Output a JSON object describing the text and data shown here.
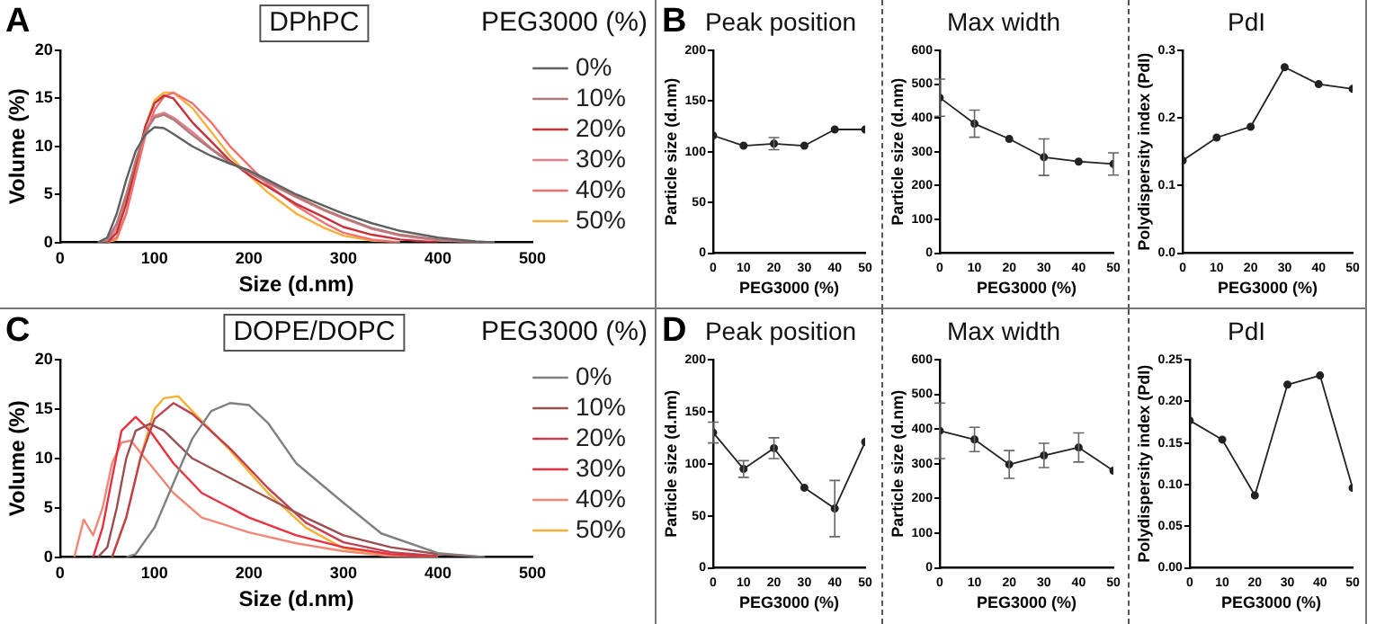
{
  "chart_data": [
    {
      "type": "line",
      "title": "DPhPC",
      "annotations": [
        "A"
      ],
      "xlabel": "Size (d.nm)",
      "ylabel": "Volume (%)",
      "legend_title": "PEG3000 (%)",
      "legend": "right",
      "marker": "none",
      "grid": false,
      "xlim": [
        0,
        500
      ],
      "xticks": [
        0,
        100,
        200,
        300,
        400,
        500
      ],
      "ylim": [
        0,
        20
      ],
      "yticks": [
        0,
        5,
        10,
        15,
        20
      ],
      "series": [
        {
          "name": "0%",
          "color": "#606060",
          "x": [
            40,
            50,
            60,
            70,
            80,
            90,
            100,
            110,
            120,
            140,
            160,
            180,
            200,
            220,
            250,
            280,
            300,
            330,
            360,
            400,
            440,
            460
          ],
          "values": [
            0,
            0.5,
            3,
            6.5,
            9.5,
            11.2,
            12,
            11.9,
            11.3,
            10,
            9,
            8.2,
            7.5,
            6.5,
            5,
            3.8,
            3,
            2,
            1.2,
            0.5,
            0.1,
            0
          ]
        },
        {
          "name": "10%",
          "color": "#b07878",
          "x": [
            40,
            50,
            60,
            70,
            80,
            90,
            100,
            110,
            120,
            140,
            160,
            180,
            200,
            220,
            250,
            280,
            300,
            330,
            360,
            400,
            440,
            460
          ],
          "values": [
            0,
            0.2,
            2,
            5,
            8.5,
            11.5,
            13,
            13.3,
            12.8,
            11.2,
            9.7,
            8.3,
            7.3,
            6.3,
            4.8,
            3.4,
            2.6,
            1.5,
            0.8,
            0.3,
            0,
            0
          ]
        },
        {
          "name": "20%",
          "color": "#c8313a",
          "x": [
            50,
            60,
            70,
            80,
            90,
            100,
            110,
            120,
            140,
            160,
            180,
            200,
            220,
            250,
            280,
            300,
            330,
            360,
            400
          ],
          "values": [
            0,
            1,
            4,
            8,
            12,
            14.5,
            15.3,
            15,
            12.5,
            10.5,
            8.5,
            7,
            5.8,
            4,
            2.6,
            1.6,
            0.8,
            0.3,
            0
          ]
        },
        {
          "name": "30%",
          "color": "#e0808a",
          "x": [
            40,
            50,
            60,
            70,
            80,
            90,
            100,
            110,
            120,
            140,
            160,
            180,
            200,
            220,
            250,
            280,
            300,
            330,
            360,
            400,
            440,
            460
          ],
          "values": [
            0,
            0,
            1.5,
            4.5,
            8.5,
            11.5,
            13.2,
            13.5,
            13,
            11.5,
            9.8,
            8.4,
            7.3,
            6.2,
            4.7,
            3.3,
            2.5,
            1.4,
            0.7,
            0.2,
            0,
            0
          ]
        },
        {
          "name": "40%",
          "color": "#f07070",
          "x": [
            50,
            60,
            70,
            80,
            90,
            100,
            110,
            120,
            140,
            160,
            180,
            200,
            220,
            250,
            280,
            300,
            330,
            360
          ],
          "values": [
            0,
            0.5,
            3,
            7,
            11,
            13.8,
            15.2,
            15.6,
            14.5,
            12.5,
            10,
            8,
            6,
            3.8,
            2,
            1,
            0.3,
            0
          ]
        },
        {
          "name": "50%",
          "color": "#f5b040",
          "x": [
            50,
            60,
            70,
            80,
            90,
            100,
            110,
            120,
            140,
            160,
            180,
            200,
            220,
            250,
            280,
            300,
            330,
            360
          ],
          "values": [
            0,
            0.3,
            3,
            7.5,
            12,
            14.8,
            15.6,
            15.6,
            14,
            11.5,
            9,
            7,
            5.2,
            3,
            1.5,
            0.7,
            0.2,
            0
          ]
        }
      ]
    },
    {
      "type": "line",
      "title": "Peak position",
      "annotations": [
        "B"
      ],
      "xlabel": "PEG3000 (%)",
      "ylabel": "Particle size (d.nm)",
      "marker": "circle",
      "grid": false,
      "x": [
        0,
        10,
        20,
        30,
        40,
        50
      ],
      "xlim": [
        0,
        50
      ],
      "xticks": [
        0,
        10,
        20,
        30,
        40,
        50
      ],
      "ylim": [
        0,
        200
      ],
      "yticks": [
        0,
        50,
        100,
        150,
        200
      ],
      "series": [
        {
          "color": "#222222",
          "values": [
            116,
            106,
            108,
            106,
            122,
            122
          ],
          "errors": [
            null,
            null,
            6,
            null,
            null,
            null
          ]
        }
      ]
    },
    {
      "type": "line",
      "title": "Max width",
      "xlabel": "PEG3000 (%)",
      "ylabel": "Particle size (d.nm)",
      "marker": "circle",
      "grid": false,
      "x": [
        0,
        10,
        20,
        30,
        40,
        50
      ],
      "xlim": [
        0,
        50
      ],
      "xticks": [
        0,
        10,
        20,
        30,
        40,
        50
      ],
      "ylim": [
        0,
        600
      ],
      "yticks": [
        0,
        100,
        200,
        300,
        400,
        500,
        600
      ],
      "series": [
        {
          "color": "#222222",
          "values": [
            460,
            383,
            338,
            284,
            271,
            264
          ],
          "errors": [
            55,
            40,
            null,
            54,
            null,
            33
          ]
        }
      ]
    },
    {
      "type": "line",
      "title": "PdI",
      "xlabel": "PEG3000 (%)",
      "ylabel": "Polydispersity index (PdI)",
      "marker": "circle",
      "grid": false,
      "x": [
        0,
        10,
        20,
        30,
        40,
        50
      ],
      "xlim": [
        0,
        50
      ],
      "xticks": [
        0,
        10,
        20,
        30,
        40,
        50
      ],
      "ylim": [
        0,
        0.3
      ],
      "yticks": [
        {
          "value": 0,
          "label": "0.0"
        },
        {
          "value": 0.1,
          "label": "0.1"
        },
        {
          "value": 0.2,
          "label": "0.2"
        },
        {
          "value": 0.3,
          "label": "0.3"
        }
      ],
      "series": [
        {
          "color": "#222222",
          "values": [
            0.137,
            0.171,
            0.187,
            0.275,
            0.25,
            0.243
          ]
        }
      ]
    },
    {
      "type": "line",
      "title": "DOPE/DOPC",
      "annotations": [
        "C"
      ],
      "xlabel": "Size (d.nm)",
      "ylabel": "Volume (%)",
      "legend_title": "PEG3000 (%)",
      "legend": "right",
      "marker": "none",
      "grid": false,
      "xlim": [
        0,
        500
      ],
      "xticks": [
        0,
        100,
        200,
        300,
        400,
        500
      ],
      "ylim": [
        0,
        20
      ],
      "yticks": [
        0,
        5,
        10,
        15,
        20
      ],
      "series": [
        {
          "name": "0%",
          "color": "#808080",
          "x": [
            70,
            80,
            100,
            120,
            140,
            160,
            180,
            200,
            220,
            250,
            300,
            340,
            400,
            450
          ],
          "values": [
            0,
            0.3,
            3,
            7.5,
            12,
            14.8,
            15.6,
            15.4,
            13.6,
            9.5,
            5.5,
            2.4,
            0.4,
            0
          ]
        },
        {
          "name": "10%",
          "color": "#9a5050",
          "x": [
            40,
            50,
            60,
            70,
            80,
            95,
            110,
            140,
            180,
            220,
            260,
            300,
            350,
            400,
            450
          ],
          "values": [
            0,
            1,
            5,
            10,
            12.8,
            13.5,
            12.8,
            10,
            8,
            6,
            4,
            2.2,
            1,
            0.3,
            0
          ]
        },
        {
          "name": "20%",
          "color": "#c04050",
          "x": [
            55,
            70,
            85,
            100,
            120,
            140,
            180,
            220,
            260,
            300,
            350,
            400
          ],
          "values": [
            0,
            4,
            10,
            14,
            15.6,
            14.5,
            11,
            7,
            3.5,
            1.5,
            0.5,
            0.1
          ]
        },
        {
          "name": "30%",
          "color": "#e83040",
          "x": [
            35,
            45,
            55,
            65,
            80,
            95,
            120,
            150,
            200,
            250,
            300,
            350,
            400
          ],
          "values": [
            0,
            3,
            8,
            12.8,
            14.2,
            12.8,
            9.5,
            6.5,
            4,
            2.2,
            1,
            0.3,
            0
          ]
        },
        {
          "name": "40%",
          "color": "#f08878",
          "x": [
            15,
            25,
            35,
            45,
            55,
            65,
            75,
            90,
            120,
            150,
            200,
            250,
            300,
            350,
            400
          ],
          "values": [
            0,
            3.8,
            2.2,
            5,
            9.5,
            11.6,
            11.8,
            10,
            6.5,
            4,
            2.5,
            1.4,
            0.6,
            0.1,
            0
          ]
        },
        {
          "name": "50%",
          "color": "#f5b030",
          "x": [
            55,
            70,
            85,
            100,
            110,
            125,
            140,
            180,
            220,
            260,
            300,
            350,
            400
          ],
          "values": [
            0,
            4,
            10,
            15,
            16.1,
            16.3,
            14.8,
            10.8,
            6.5,
            3,
            0.9,
            0.2,
            0
          ]
        }
      ]
    },
    {
      "type": "line",
      "title": "Peak position",
      "annotations": [
        "D"
      ],
      "xlabel": "PEG3000 (%)",
      "ylabel": "Particle size (d.nm)",
      "marker": "circle",
      "grid": false,
      "x": [
        0,
        10,
        20,
        30,
        40,
        50
      ],
      "xlim": [
        0,
        50
      ],
      "xticks": [
        0,
        10,
        20,
        30,
        40,
        50
      ],
      "ylim": [
        0,
        200
      ],
      "yticks": [
        0,
        50,
        100,
        150,
        200
      ],
      "series": [
        {
          "color": "#222222",
          "values": [
            130,
            95,
            115,
            77,
            57,
            121
          ],
          "errors": [
            10,
            8,
            10,
            null,
            27,
            null
          ]
        }
      ]
    },
    {
      "type": "line",
      "title": "Max width",
      "xlabel": "PEG3000 (%)",
      "ylabel": "Particle size (d.nm)",
      "marker": "circle",
      "grid": false,
      "x": [
        0,
        10,
        20,
        30,
        40,
        50
      ],
      "xlim": [
        0,
        50
      ],
      "xticks": [
        0,
        10,
        20,
        30,
        40,
        50
      ],
      "ylim": [
        0,
        600
      ],
      "yticks": [
        0,
        100,
        200,
        300,
        400,
        500,
        600
      ],
      "series": [
        {
          "color": "#222222",
          "values": [
            395,
            370,
            298,
            324,
            347,
            280
          ],
          "errors": [
            80,
            35,
            40,
            35,
            42,
            null
          ]
        }
      ]
    },
    {
      "type": "line",
      "title": "PdI",
      "xlabel": "PEG3000 (%)",
      "ylabel": "Polydispersity index (PdI)",
      "marker": "circle",
      "grid": false,
      "x": [
        0,
        10,
        20,
        30,
        40,
        50
      ],
      "xlim": [
        0,
        50
      ],
      "xticks": [
        0,
        10,
        20,
        30,
        40,
        50
      ],
      "ylim": [
        0,
        0.25
      ],
      "yticks": [
        {
          "value": 0,
          "label": "0.00"
        },
        {
          "value": 0.05,
          "label": "0.05"
        },
        {
          "value": 0.1,
          "label": "0.10"
        },
        {
          "value": 0.15,
          "label": "0.15"
        },
        {
          "value": 0.2,
          "label": "0.20"
        },
        {
          "value": 0.25,
          "label": "0.25"
        }
      ],
      "series": [
        {
          "color": "#222222",
          "values": [
            0.177,
            0.154,
            0.087,
            0.22,
            0.231,
            0.096
          ]
        }
      ]
    }
  ]
}
